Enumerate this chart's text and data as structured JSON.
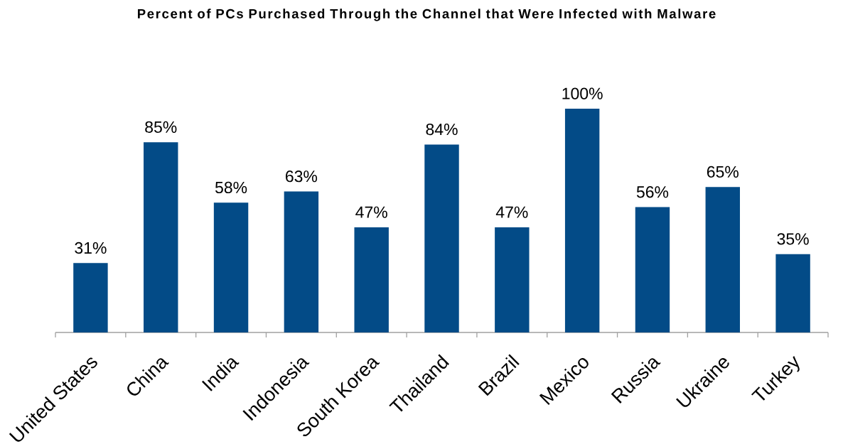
{
  "chart_data": {
    "type": "bar",
    "title": "Percent of PCs Purchased Through the Channel that Were Infected with Malware",
    "categories": [
      "United States",
      "China",
      "India",
      "Indonesia",
      "South Korea",
      "Thailand",
      "Brazil",
      "Mexico",
      "Russia",
      "Ukraine",
      "Turkey"
    ],
    "values": [
      31,
      85,
      58,
      63,
      47,
      84,
      47,
      100,
      56,
      65,
      35
    ],
    "value_labels": [
      "31%",
      "85%",
      "58%",
      "63%",
      "47%",
      "84%",
      "47%",
      "100%",
      "56%",
      "65%",
      "35%"
    ],
    "color": "#034b87"
  }
}
